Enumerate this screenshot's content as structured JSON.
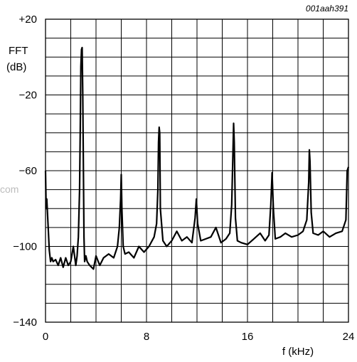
{
  "figure_ref": "001aah391",
  "watermark": "com",
  "chart_data": {
    "type": "line",
    "ylabel_lines": [
      "FFT",
      "(dB)"
    ],
    "xlabel": "f (kHz)",
    "xlim": [
      0,
      24
    ],
    "ylim": [
      -140,
      20
    ],
    "x_ticks": [
      0,
      8,
      16,
      24
    ],
    "x_tick_labels": [
      "0",
      "8",
      "16",
      "24"
    ],
    "y_ticks": [
      20,
      -20,
      -60,
      -100,
      -140
    ],
    "y_tick_labels": [
      "+20",
      "−20",
      "−60",
      "−100",
      "−140"
    ],
    "grid": true,
    "x_grid_step": 2,
    "y_grid_step": 10,
    "series": [
      {
        "color": "#000000",
        "x": [
          0.0,
          0.05,
          0.1,
          0.2,
          0.3,
          0.4,
          0.5,
          0.6,
          0.8,
          1.0,
          1.2,
          1.4,
          1.6,
          1.8,
          2.0,
          2.2,
          2.4,
          2.5,
          2.6,
          2.7,
          2.75,
          2.8,
          2.85,
          2.9,
          2.95,
          3.0,
          3.05,
          3.1,
          3.2,
          3.3,
          3.5,
          3.8,
          4.0,
          4.3,
          4.6,
          5.0,
          5.4,
          5.7,
          5.85,
          5.95,
          6.0,
          6.05,
          6.15,
          6.3,
          6.6,
          7.0,
          7.4,
          7.8,
          8.2,
          8.6,
          8.8,
          8.9,
          8.95,
          9.0,
          9.05,
          9.1,
          9.3,
          9.6,
          10.0,
          10.4,
          10.8,
          11.2,
          11.6,
          11.85,
          11.95,
          12.05,
          12.3,
          12.7,
          13.1,
          13.5,
          13.9,
          14.3,
          14.6,
          14.75,
          14.85,
          14.9,
          14.95,
          15.05,
          15.2,
          15.5,
          16.0,
          16.5,
          17.0,
          17.4,
          17.7,
          17.85,
          17.95,
          18.05,
          18.2,
          18.6,
          19.0,
          19.5,
          20.0,
          20.4,
          20.7,
          20.85,
          20.9,
          20.95,
          21.05,
          21.2,
          21.6,
          22.0,
          22.5,
          23.0,
          23.5,
          23.8,
          23.9,
          24.0
        ],
        "y": [
          -60,
          -80,
          -75,
          -88,
          -102,
          -108,
          -106,
          -108,
          -107,
          -110,
          -106,
          -111,
          -106,
          -110,
          -108,
          -100,
          -110,
          -105,
          -95,
          -70,
          -40,
          -5,
          4,
          5,
          -20,
          -60,
          -95,
          -108,
          -105,
          -108,
          -110,
          -112,
          -105,
          -110,
          -106,
          -104,
          -106,
          -100,
          -90,
          -75,
          -62,
          -80,
          -100,
          -104,
          -103,
          -106,
          -100,
          -103,
          -100,
          -95,
          -88,
          -70,
          -45,
          -37,
          -40,
          -80,
          -97,
          -100,
          -97,
          -92,
          -97,
          -95,
          -98,
          -85,
          -75,
          -88,
          -97,
          -96,
          -95,
          -90,
          -98,
          -96,
          -93,
          -78,
          -50,
          -35,
          -45,
          -85,
          -97,
          -98,
          -99,
          -96,
          -93,
          -97,
          -94,
          -78,
          -61,
          -80,
          -96,
          -95,
          -93,
          -95,
          -94,
          -92,
          -86,
          -66,
          -49,
          -55,
          -82,
          -93,
          -94,
          -92,
          -95,
          -93,
          -92,
          -86,
          -60,
          -58
        ]
      }
    ]
  }
}
